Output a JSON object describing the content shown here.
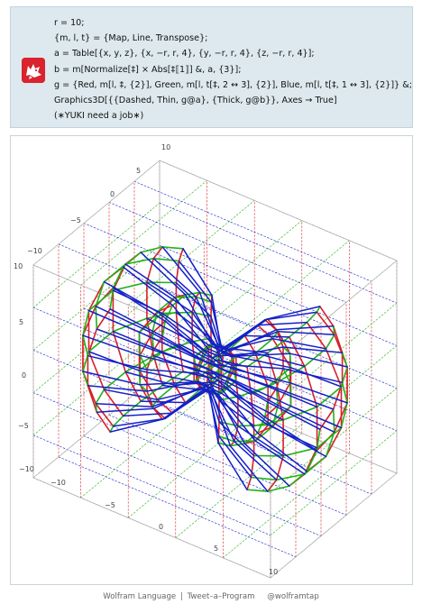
{
  "app": {
    "logo_icon": "wolfram-wolf-icon",
    "accent": "#d9232d"
  },
  "code": {
    "lines": [
      " r = 10;",
      "{m, l, t} = {Map, Line, Transpose};",
      "a = Table[{x, y, z}, {x, −r, r, 4}, {y, −r, r, 4}, {z, −r, r, 4}];",
      "b = m[Normalize[‡] × Abs[‡⟦1⟧] &, a, {3}];",
      "g = {Red, m[l, ‡, {2}], Green, m[l, t[‡, 2 ↔ 3], {2}], Blue, m[l, t[‡, 1 ↔ 3], {2}]} &;",
      "Graphics3D[{{Dashed, Thin, g@a}, {Thick, g@b}}, Axes → True]",
      "(∗YUKI need a job∗)"
    ]
  },
  "plot": {
    "colors": {
      "red": "#d81f26",
      "green": "#22b21a",
      "blue": "#1420c8"
    },
    "top_axis_ticks": [
      "10",
      "5",
      "0",
      "−5",
      "−10"
    ],
    "left_axis_ticks": [
      "10",
      "5",
      "0",
      "−5",
      "−10"
    ],
    "bottom_axis_ticks": [
      "−10",
      "−5",
      "0",
      "5",
      "10"
    ]
  },
  "footer": {
    "language": "Wolfram Language",
    "separator": "|",
    "program": "Tweet–a–Program",
    "handle": "@wolframtap"
  }
}
